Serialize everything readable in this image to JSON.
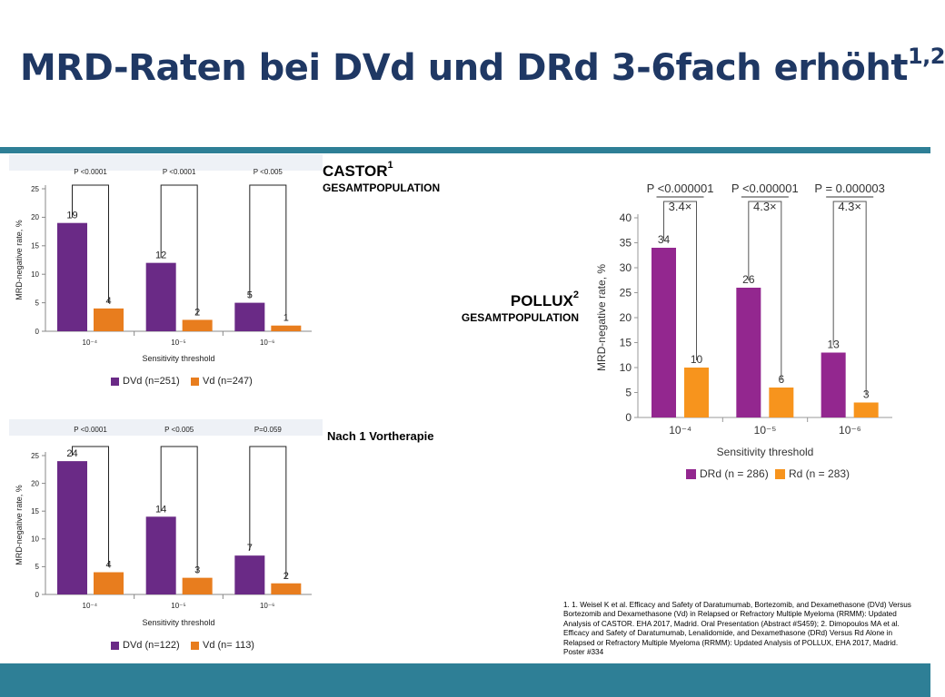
{
  "title": {
    "text": "MRD-Raten bei DVd und DRd 3-6fach erhöht",
    "sup": "1,2"
  },
  "castor_label": {
    "main": "CASTOR",
    "sup": "1",
    "sub": "GESAMTPOPULATION"
  },
  "pollux_label": {
    "main": "POLLUX",
    "sup": "2",
    "sub": "GESAMTPOPULATION"
  },
  "subgroup_label": "Nach 1 Vortherapie",
  "references": "1. 1. Weisel K et al. Efficacy and Safety of Daratumumab, Bortezomib, and Dexamethasone (DVd) Versus Bortezomib and Dexamethasone (Vd) in Relapsed or Refractory Multiple Myeloma (RRMM): Updated Analysis of CASTOR. EHA 2017, Madrid. Oral Presentation (Abstract #S459); 2. Dimopoulos MA et al. Efficacy and Safety of Daratumumab, Lenalidomide, and Dexamethasone (DRd) Versus Rd Alone in Relapsed or Refractory Multiple Myeloma (RRMM): Updated Analysis of POLLUX, EHA 2017, Madrid. Poster #334",
  "colors": {
    "title": "#1f3864",
    "accent_bar": "#2e7f96",
    "castor_purple": "#6a2a86",
    "castor_orange": "#e87d1e",
    "pollux_purple": "#93278f",
    "pollux_orange": "#f7941d"
  },
  "chart_data": [
    {
      "id": "castor_overall",
      "type": "bar",
      "categories": [
        "10⁻⁴",
        "10⁻⁵",
        "10⁻⁶"
      ],
      "series": [
        {
          "name": "DVd (n=251)",
          "values": [
            19,
            12,
            5
          ],
          "color": "#6a2a86"
        },
        {
          "name": "Vd (n=247)",
          "values": [
            4,
            2,
            1
          ],
          "color": "#e87d1e"
        }
      ],
      "p_values": [
        "P <0.0001",
        "P <0.0001",
        "P <0.005"
      ],
      "xlabel": "Sensitivity threshold",
      "ylabel": "MRD-negative rate, %",
      "ylim": [
        0,
        25
      ],
      "yticks": [
        0,
        5,
        10,
        15,
        20,
        25
      ],
      "legend": "bottom",
      "grid": false
    },
    {
      "id": "castor_1prior",
      "type": "bar",
      "categories": [
        "10⁻⁴",
        "10⁻⁵",
        "10⁻⁶"
      ],
      "series": [
        {
          "name": "DVd (n=122)",
          "values": [
            24,
            14,
            7
          ],
          "color": "#6a2a86"
        },
        {
          "name": "Vd (n= 113)",
          "values": [
            4,
            3,
            2
          ],
          "color": "#e87d1e"
        }
      ],
      "p_values": [
        "P <0.0001",
        "P <0.005",
        "P=0.059"
      ],
      "xlabel": "Sensitivity threshold",
      "ylabel": "MRD-negative rate, %",
      "ylim": [
        0,
        25
      ],
      "yticks": [
        0,
        5,
        10,
        15,
        20,
        25
      ],
      "legend": "bottom",
      "grid": false
    },
    {
      "id": "pollux_overall",
      "type": "bar",
      "categories": [
        "10⁻⁴",
        "10⁻⁵",
        "10⁻⁶"
      ],
      "series": [
        {
          "name": "DRd (n = 286)",
          "values": [
            34,
            26,
            13
          ],
          "color": "#93278f"
        },
        {
          "name": "Rd (n = 283)",
          "values": [
            10,
            6,
            3
          ],
          "color": "#f7941d"
        }
      ],
      "p_values": [
        "P <0.000001",
        "P <0.000001",
        "P = 0.000003"
      ],
      "fold_changes": [
        "3.4×",
        "4.3×",
        "4.3×"
      ],
      "xlabel": "Sensitivity threshold",
      "ylabel": "MRD-negative rate, %",
      "ylim": [
        0,
        40
      ],
      "yticks": [
        0,
        5,
        10,
        15,
        20,
        25,
        30,
        35,
        40
      ],
      "legend": "bottom",
      "grid": false
    }
  ]
}
